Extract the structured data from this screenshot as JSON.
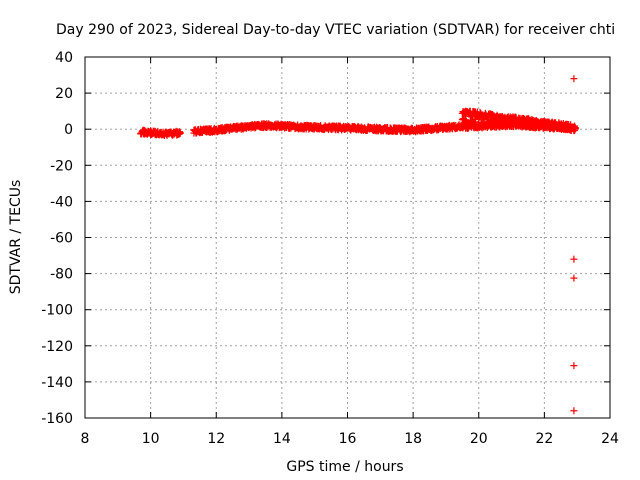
{
  "chart_data": {
    "type": "scatter",
    "title": "Day 290 of 2023, Sidereal Day-to-day VTEC variation (SDTVAR) for receiver chti",
    "xlabel": "GPS time / hours",
    "ylabel": "SDTVAR / TECUs",
    "xlim": [
      8,
      24
    ],
    "ylim": [
      -160,
      40
    ],
    "x_ticks": [
      "8",
      "10",
      "12",
      "14",
      "16",
      "18",
      "20",
      "22",
      "24"
    ],
    "y_ticks": [
      "40",
      "20",
      "0",
      "-20",
      "-40",
      "-60",
      "-80",
      "-100",
      "-120",
      "-140",
      "-160"
    ],
    "grid": true,
    "marker": "+",
    "color": "#ff0000",
    "series_main": {
      "name": "SDTVAR",
      "x_range": [
        9.7,
        22.95
      ],
      "profile": [
        [
          9.7,
          -1.5
        ],
        [
          10.0,
          -2.0
        ],
        [
          10.5,
          -2.5
        ],
        [
          11.0,
          -2.0
        ],
        [
          11.5,
          -1.0
        ],
        [
          12.0,
          -0.5
        ],
        [
          12.5,
          0.5
        ],
        [
          13.0,
          1.5
        ],
        [
          13.5,
          2.0
        ],
        [
          14.0,
          1.8
        ],
        [
          14.5,
          1.2
        ],
        [
          15.0,
          1.0
        ],
        [
          15.5,
          0.8
        ],
        [
          16.0,
          0.6
        ],
        [
          16.5,
          0.3
        ],
        [
          17.0,
          0.0
        ],
        [
          17.5,
          -0.3
        ],
        [
          18.0,
          -0.5
        ],
        [
          18.5,
          0.3
        ],
        [
          19.0,
          1.0
        ],
        [
          19.5,
          1.5
        ],
        [
          20.0,
          1.8
        ],
        [
          20.5,
          2.2
        ],
        [
          21.0,
          2.5
        ],
        [
          21.5,
          2.0
        ],
        [
          22.0,
          1.5
        ],
        [
          22.5,
          1.0
        ],
        [
          22.95,
          0.0
        ]
      ],
      "upper_branch": [
        [
          19.5,
          9.5
        ],
        [
          20.0,
          8.5
        ],
        [
          20.5,
          7.5
        ],
        [
          21.0,
          6.0
        ],
        [
          21.5,
          5.0
        ],
        [
          22.0,
          3.5
        ],
        [
          22.5,
          2.5
        ],
        [
          22.95,
          1.0
        ]
      ]
    },
    "outliers": [
      {
        "x": 22.9,
        "y": 28
      },
      {
        "x": 22.9,
        "y": -72
      },
      {
        "x": 22.9,
        "y": -82.5
      },
      {
        "x": 22.9,
        "y": -131
      },
      {
        "x": 22.9,
        "y": -156
      }
    ]
  }
}
